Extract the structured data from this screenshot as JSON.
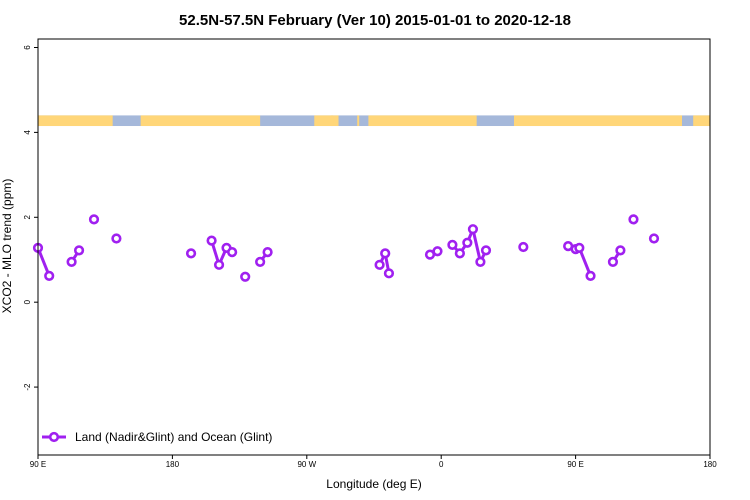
{
  "chart_data": {
    "type": "scatter",
    "title": "52.5N-57.5N February (Ver 10)   2015-01-01 to 2020-12-18",
    "xlabel": "Longitude (deg E)",
    "ylabel": "XCO2 - MLO trend (ppm)",
    "xlim": [
      90,
      450
    ],
    "ylim": [
      -3.6,
      6.2
    ],
    "x_ticks": [
      {
        "value": 90,
        "label": "90 E"
      },
      {
        "value": 162,
        "label": "180"
      },
      {
        "value": 234,
        "label": "90 W"
      },
      {
        "value": 306,
        "label": "0"
      },
      {
        "value": 378,
        "label": "90 E"
      },
      {
        "value": 450,
        "label": "180"
      }
    ],
    "y_ticks": [
      -2,
      0,
      2,
      4,
      6
    ],
    "grid": false,
    "legend_position": "bottom-left",
    "land_ocean_band": {
      "y_range": [
        4.15,
        4.4
      ],
      "land_color": "#FFD679",
      "ocean_color": "#A5B8DA",
      "land_segments": [
        [
          90,
          130
        ],
        [
          145,
          209
        ],
        [
          238,
          251
        ],
        [
          247,
          247
        ],
        [
          261,
          261
        ],
        [
          267,
          325
        ],
        [
          345,
          435
        ],
        [
          441,
          450
        ]
      ]
    },
    "series": [
      {
        "name": "Land (Nadir&Glint) and Ocean (Glint)",
        "color": "#A020F0",
        "x": [
          90,
          96,
          108,
          112,
          120,
          132,
          172,
          183,
          187,
          191,
          194,
          201,
          209,
          213,
          273,
          276,
          278,
          300,
          304,
          312,
          316,
          320,
          323,
          327,
          330,
          350,
          374,
          378,
          380,
          386,
          398,
          402,
          409,
          420
        ],
        "y": [
          1.28,
          0.62,
          0.95,
          1.22,
          1.95,
          1.5,
          1.15,
          1.45,
          0.88,
          1.28,
          1.18,
          0.6,
          0.95,
          1.18,
          0.88,
          1.15,
          0.68,
          1.12,
          1.2,
          1.35,
          1.15,
          1.4,
          1.72,
          0.95,
          1.22,
          1.3,
          1.32,
          1.25,
          1.28,
          0.62,
          0.95,
          1.22,
          1.95,
          1.5
        ],
        "connected_pairs": [
          [
            0,
            1
          ],
          [
            2,
            3
          ],
          [
            7,
            8
          ],
          [
            8,
            9
          ],
          [
            9,
            10
          ],
          [
            12,
            13
          ],
          [
            14,
            15
          ],
          [
            15,
            16
          ],
          [
            17,
            18
          ],
          [
            19,
            20
          ],
          [
            20,
            21
          ],
          [
            21,
            22
          ],
          [
            22,
            23
          ],
          [
            23,
            24
          ],
          [
            26,
            27
          ],
          [
            27,
            28
          ],
          [
            28,
            29
          ],
          [
            30,
            31
          ]
        ]
      }
    ]
  }
}
